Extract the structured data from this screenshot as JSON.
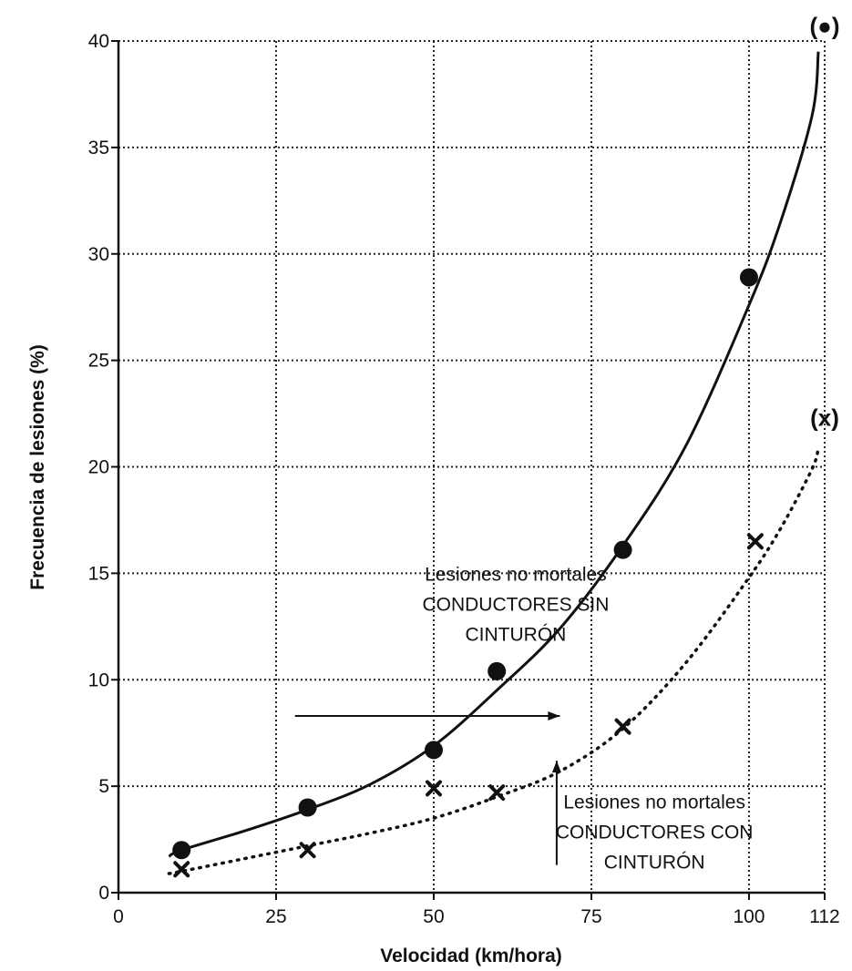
{
  "chart_data": {
    "type": "scatter",
    "title": "",
    "xlabel": "Velocidad (km/hora)",
    "ylabel": "Frecuencia de lesiones (%)",
    "xlim": [
      0,
      112
    ],
    "ylim": [
      0,
      40
    ],
    "x_ticks": [
      0,
      25,
      50,
      75,
      100,
      112
    ],
    "y_ticks": [
      0,
      5,
      10,
      15,
      20,
      25,
      30,
      35,
      40
    ],
    "grid": true,
    "series": [
      {
        "marker": "circle",
        "marker_label": "(●)",
        "x": [
          10,
          30,
          50,
          60,
          80,
          100,
          112
        ],
        "y": [
          2.0,
          4.0,
          6.7,
          10.4,
          16.1,
          28.9,
          40.7
        ],
        "trend": {
          "style": "solid",
          "x": [
            8,
            10,
            20,
            30,
            40,
            50,
            60,
            70,
            80,
            90,
            100,
            105,
            110,
            111
          ],
          "y": [
            1.7,
            2.0,
            2.9,
            3.9,
            5.1,
            6.9,
            9.5,
            12.4,
            16.3,
            21.0,
            27.6,
            31.5,
            36.5,
            39.5
          ]
        },
        "annotation": {
          "lines": [
            "Lesiones no mortales",
            "CONDUCTORES SIN",
            "CINTURÓN"
          ],
          "arrow_direction": "right"
        }
      },
      {
        "marker": "x",
        "marker_label": "(x)",
        "x": [
          10,
          30,
          50,
          60,
          80,
          101,
          112
        ],
        "y": [
          1.1,
          2.0,
          4.9,
          4.7,
          7.8,
          16.5,
          22.3
        ],
        "trend": {
          "style": "dotted",
          "x": [
            8,
            10,
            20,
            30,
            40,
            50,
            60,
            70,
            80,
            90,
            100,
            105,
            110,
            111
          ],
          "y": [
            0.9,
            1.0,
            1.6,
            2.2,
            2.8,
            3.5,
            4.5,
            5.7,
            7.7,
            10.8,
            14.8,
            17.1,
            19.9,
            20.9
          ]
        },
        "annotation": {
          "lines": [
            "Lesiones no mortales",
            "CONDUCTORES CON",
            "CINTURÓN"
          ],
          "arrow_direction": "up"
        }
      }
    ]
  }
}
